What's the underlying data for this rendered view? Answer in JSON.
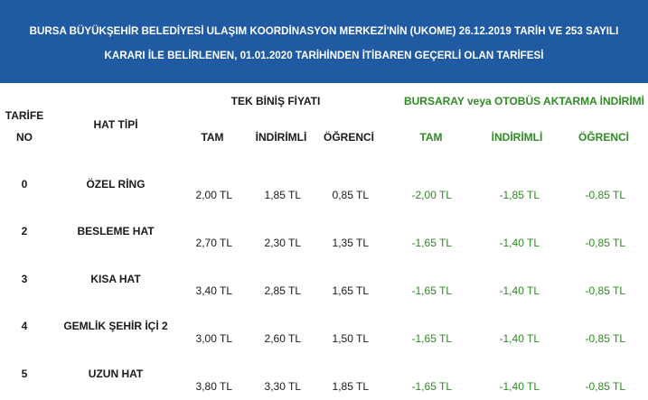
{
  "banner": {
    "line1": "BURSA BÜYÜKŞEHİR BELEDİYESİ ULAŞIM KOORDİNASYON MERKEZİ'NİN (UKOME) 26.12.2019 TARİH VE 253 SAYILI",
    "line2": "KARARI İLE BELİRLENEN, 01.01.2020 TARİHİNDEN İTİBAREN GEÇERLİ OLAN TARİFESİ"
  },
  "header": {
    "tarife": "TARİFE",
    "no": "NO",
    "hat_tipi": "HAT TİPİ",
    "tek_binis": "TEK BİNİŞ FİYATI",
    "aktarma": "BURSARAY veya OTOBÜS AKTARMA İNDİRİMİ",
    "tam": "TAM",
    "indirimli": "İNDİRİMLİ",
    "ogrenci": "ÖĞRENCİ",
    "a_tam": "TAM",
    "a_indirimli": "İNDİRİMLİ",
    "a_ogrenci": "ÖĞRENCİ"
  },
  "rows": [
    {
      "no": "0",
      "hat": "ÖZEL RİNG",
      "tam": "2,00 TL",
      "indirimli": "1,85 TL",
      "ogrenci": "0,85 TL",
      "a_tam": "-2,00 TL",
      "a_indirimli": "-1,85 TL",
      "a_ogrenci": "-0,85 TL"
    },
    {
      "no": "2",
      "hat": "BESLEME HAT",
      "tam": "2,70 TL",
      "indirimli": "2,30 TL",
      "ogrenci": "1,35 TL",
      "a_tam": "-1,65 TL",
      "a_indirimli": "-1,40 TL",
      "a_ogrenci": "-0,85 TL"
    },
    {
      "no": "3",
      "hat": "KISA HAT",
      "tam": "3,40 TL",
      "indirimli": "2,85 TL",
      "ogrenci": "1,65 TL",
      "a_tam": "-1,65 TL",
      "a_indirimli": "-1,40 TL",
      "a_ogrenci": "-0,85 TL"
    },
    {
      "no": "4",
      "hat": "GEMLİK ŞEHİR İÇİ 2",
      "tam": "3,00 TL",
      "indirimli": "2,60 TL",
      "ogrenci": "1,50 TL",
      "a_tam": "-1,65 TL",
      "a_indirimli": "-1,40 TL",
      "a_ogrenci": "-0,85 TL"
    },
    {
      "no": "5",
      "hat": "UZUN HAT",
      "tam": "3,80 TL",
      "indirimli": "3,30 TL",
      "ogrenci": "1,85 TL",
      "a_tam": "-1,65 TL",
      "a_indirimli": "-1,40 TL",
      "a_ogrenci": "-0,85 TL"
    }
  ],
  "colors": {
    "banner": "#1f5aa3",
    "accent_green": "#2e8b22"
  }
}
